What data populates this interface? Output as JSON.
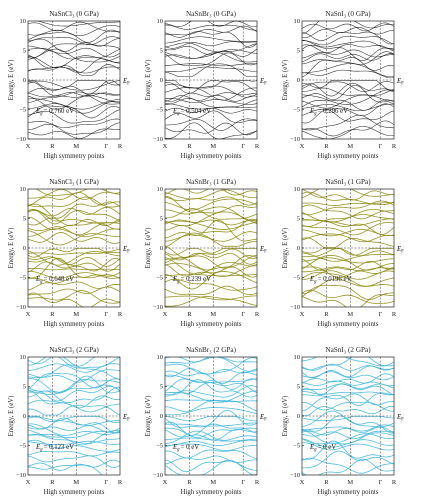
{
  "figure": {
    "ylabel": "Energy, E (eV)",
    "xlabel": "High symmetry points",
    "fermi_label": "E",
    "fermi_sub": "F",
    "gap_prefix": "E",
    "gap_sub": "g"
  },
  "chart_data": [
    {
      "type": "line",
      "title": "NaSnCl₃ (0 GPa)",
      "gap": "= 0.760 eV",
      "xlabel": "High symmetry points",
      "ylabel": "Energy, E (eV)",
      "xticks": [
        "X",
        "R",
        "M",
        "Γ",
        "R"
      ],
      "ylim": [
        -10,
        10
      ],
      "yticks": [
        -10,
        -5,
        0,
        5
      ],
      "fermi_level": 0,
      "line_color": "#111111",
      "gap_value_eV": 0.76,
      "pressure_GPa": 0
    },
    {
      "type": "line",
      "title": "NaSnBr₃ (0 GPa)",
      "gap": "= 0.504 eV",
      "xlabel": "High symmetry points",
      "ylabel": "Energy, E (eV)",
      "xticks": [
        "X",
        "R",
        "M",
        "Γ",
        "R"
      ],
      "ylim": [
        -10,
        10
      ],
      "yticks": [
        -10,
        -5,
        0,
        5
      ],
      "fermi_level": 0,
      "line_color": "#111111",
      "gap_value_eV": 0.504,
      "pressure_GPa": 0
    },
    {
      "type": "line",
      "title": "NaSnI₃ (0 GPa)",
      "gap": "= 0.296 eV",
      "xlabel": "High symmetry points",
      "ylabel": "Energy, E (eV)",
      "xticks": [
        "X",
        "R",
        "M",
        "Γ",
        "R"
      ],
      "ylim": [
        -10,
        10
      ],
      "yticks": [
        -10,
        -5,
        0,
        5
      ],
      "fermi_level": 0,
      "line_color": "#111111",
      "gap_value_eV": 0.296,
      "pressure_GPa": 0
    },
    {
      "type": "line",
      "title": "NaSnCl₃ (1 GPa)",
      "gap": "= 0.648 eV",
      "xlabel": "High symmetry points",
      "ylabel": "Energy, E (eV)",
      "xticks": [
        "X",
        "R",
        "M",
        "Γ",
        "R"
      ],
      "ylim": [
        -10,
        10
      ],
      "yticks": [
        -10,
        -5,
        0,
        5
      ],
      "fermi_level": 0,
      "line_color": "#8c8a10",
      "gap_value_eV": 0.648,
      "pressure_GPa": 1
    },
    {
      "type": "line",
      "title": "NaSnBr₃ (1 GPa)",
      "gap": "= 0.239 eV",
      "xlabel": "High symmetry points",
      "ylabel": "Energy, E (eV)",
      "xticks": [
        "X",
        "R",
        "M",
        "Γ",
        "R"
      ],
      "ylim": [
        -10,
        10
      ],
      "yticks": [
        -10,
        -5,
        0,
        5
      ],
      "fermi_level": 0,
      "line_color": "#8c8a10",
      "gap_value_eV": 0.239,
      "pressure_GPa": 1
    },
    {
      "type": "line",
      "title": "NaSnI₃ (1 GPa)",
      "gap": "= 0.0196 eV",
      "xlabel": "High symmetry points",
      "ylabel": "Energy, E (eV)",
      "xticks": [
        "X",
        "R",
        "M",
        "Γ",
        "R"
      ],
      "ylim": [
        -10,
        10
      ],
      "yticks": [
        -10,
        -5,
        0,
        5
      ],
      "fermi_level": 0,
      "line_color": "#8c8a10",
      "gap_value_eV": 0.0196,
      "pressure_GPa": 1
    },
    {
      "type": "line",
      "title": "NaSnCl₃ (2 GPa)",
      "gap": "= 0.123 eV",
      "xlabel": "High symmetry points",
      "ylabel": "Energy, E (eV)",
      "xticks": [
        "X",
        "R",
        "M",
        "Γ",
        "R"
      ],
      "ylim": [
        -10,
        10
      ],
      "yticks": [
        -10,
        -5,
        0,
        5
      ],
      "fermi_level": 0,
      "line_color": "#3fb6dc",
      "gap_value_eV": 0.123,
      "pressure_GPa": 2
    },
    {
      "type": "line",
      "title": "NaSnBr₃ (2 GPa)",
      "gap": "= 0 eV",
      "xlabel": "High symmetry points",
      "ylabel": "Energy, E (eV)",
      "xticks": [
        "X",
        "R",
        "M",
        "Γ",
        "R"
      ],
      "ylim": [
        -10,
        10
      ],
      "yticks": [
        -10,
        -5,
        0,
        5
      ],
      "fermi_level": 0,
      "line_color": "#3fb6dc",
      "gap_value_eV": 0,
      "pressure_GPa": 2
    },
    {
      "type": "line",
      "title": "NaSnI₃ (2 GPa)",
      "gap": "= 0 eV",
      "xlabel": "High symmetry points",
      "ylabel": "Energy, E (eV)",
      "xticks": [
        "X",
        "R",
        "M",
        "Γ",
        "R"
      ],
      "ylim": [
        -10,
        10
      ],
      "yticks": [
        -10,
        -5,
        0,
        5
      ],
      "fermi_level": 0,
      "line_color": "#3fb6dc",
      "gap_value_eV": 0,
      "pressure_GPa": 2
    }
  ]
}
